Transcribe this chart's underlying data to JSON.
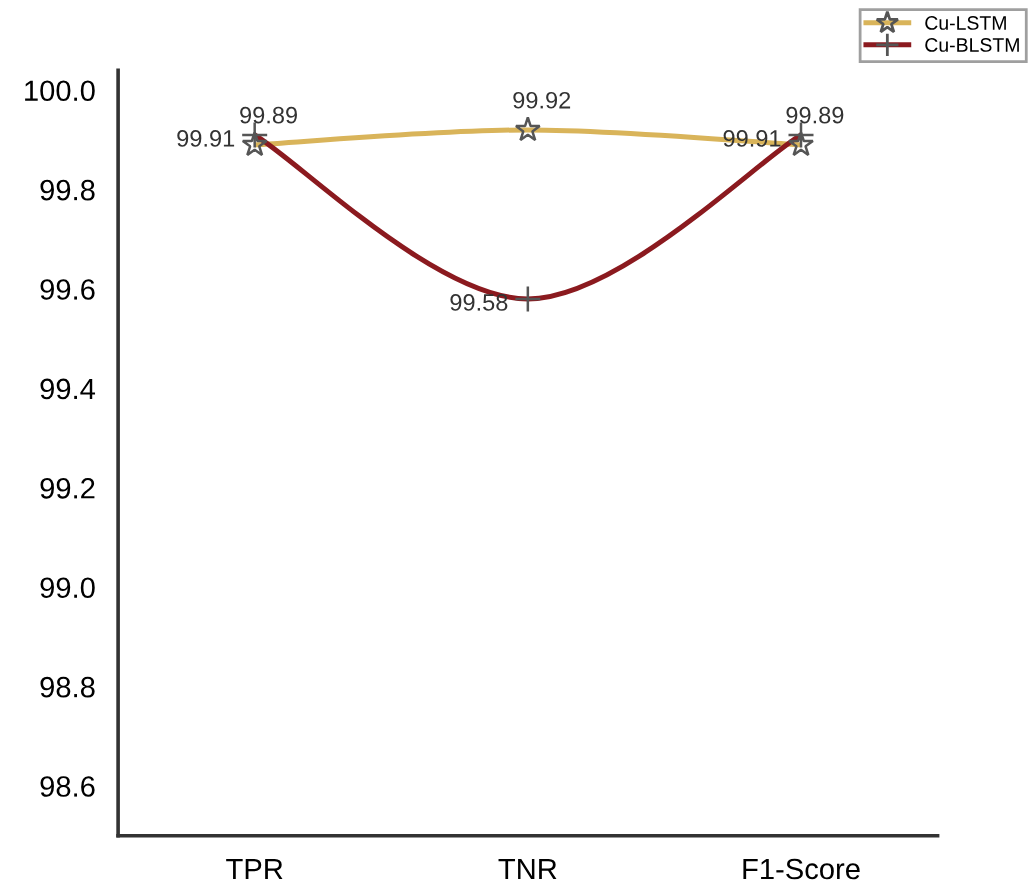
{
  "chart_data": {
    "type": "line",
    "categories": [
      "TPR",
      "TNR",
      "F1-Score"
    ],
    "series": [
      {
        "name": "Cu-LSTM",
        "color": "#d9b45a",
        "values": [
          99.89,
          99.92,
          99.89
        ],
        "marker": "star"
      },
      {
        "name": "Cu-BLSTM",
        "color": "#8b1a1f",
        "values": [
          99.91,
          99.58,
          99.91
        ],
        "marker": "cross"
      }
    ],
    "ylim": [
      98.5,
      100.04
    ],
    "yticks": [
      {
        "value": 98.6,
        "label": "98.6"
      },
      {
        "value": 98.8,
        "label": "98.8"
      },
      {
        "value": 99.0,
        "label": "99.0"
      },
      {
        "value": 99.2,
        "label": "99.2"
      },
      {
        "value": 99.4,
        "label": "99.4"
      },
      {
        "value": 99.6,
        "label": "99.6"
      },
      {
        "value": 99.8,
        "label": "99.8"
      },
      {
        "value": 100.0,
        "label": "100.0"
      }
    ],
    "grid": false,
    "legend": "top right",
    "data_labels": true,
    "line_style": "solid"
  }
}
